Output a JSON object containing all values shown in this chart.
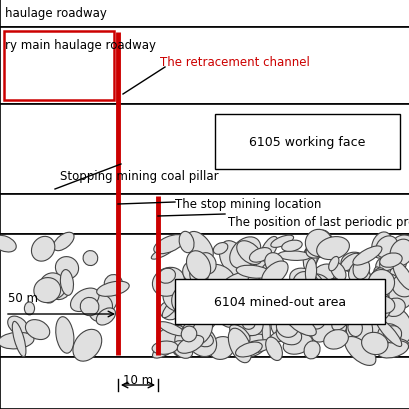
{
  "fig_width": 4.1,
  "fig_height": 4.1,
  "dpi": 100,
  "bg_color": "#ffffff",
  "roadway_top_label": "haulage roadway",
  "roadway_mid_label": "ry main haulage roadway",
  "retracement_label": "The retracement channel",
  "working_face_label": "6105 working face",
  "coal_pillar_label": "Stopping mining coal pillar",
  "stop_mining_label": "The stop mining location",
  "periodic_press_label": "The position of last periodic pressu",
  "mined_out_label": "6104 mined-out area",
  "dim_50m": "50 m",
  "dim_10m": "10 m",
  "red_color": "#cc0000",
  "black_color": "#000000"
}
